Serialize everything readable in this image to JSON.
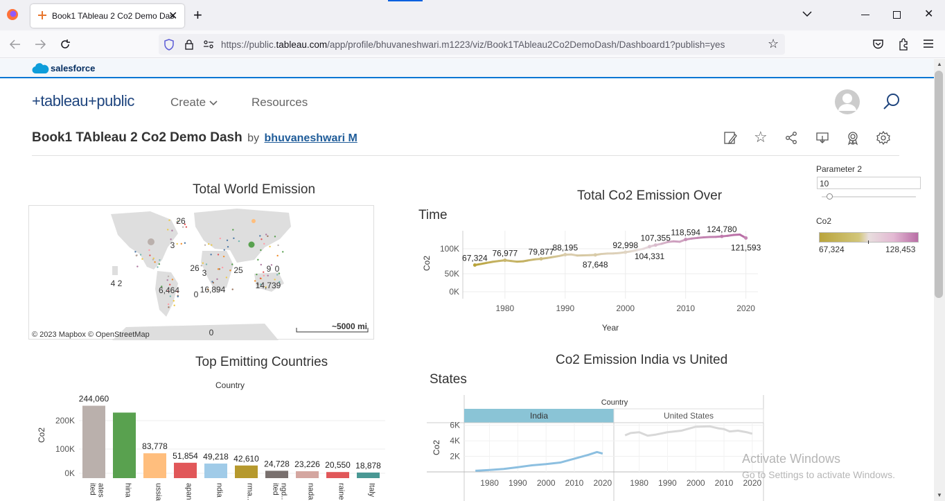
{
  "browser": {
    "tab_title": "Book1 TAbleau 2 Co2 Demo Das",
    "url_prefix": "https://public.",
    "url_domain": "tableau.com",
    "url_path": "/app/profile/bhuvaneshwari.m1223/viz/Book1TAbleau2Co2DemoDash/Dashboard1?publish=yes"
  },
  "salesforce": {
    "label": "salesforce"
  },
  "site": {
    "logo": "+tableau+public",
    "nav": [
      {
        "label": "Create"
      },
      {
        "label": "Resources"
      }
    ]
  },
  "viz": {
    "title": "Book1 TAbleau 2 Co2 Demo Dash",
    "by": "by",
    "author": "bhuvaneshwari M"
  },
  "controls": {
    "parameter_label": "Parameter 2",
    "parameter_value": "10",
    "legend_title": "Co2",
    "legend_min": "67,324",
    "legend_max": "128,453"
  },
  "map": {
    "title": "Total World Emission",
    "labels": [
      "26",
      "3",
      "26",
      "3",
      "25",
      "9",
      "0",
      "4",
      "2",
      "6,464",
      "0",
      "16,894",
      "14,739",
      "0"
    ],
    "attribution": "© 2023 Mapbox  © OpenStreetMap",
    "scale": "~5000 mi"
  },
  "chart_data": [
    {
      "type": "line",
      "title": "Total Co2 Emission Over Time",
      "xlabel": "Year",
      "ylabel": "Co2",
      "x_ticks": [
        "1980",
        "1990",
        "2000",
        "2010",
        "2020"
      ],
      "y_ticks": [
        "0K",
        "50K",
        "100K"
      ],
      "ylim": [
        0,
        135000
      ],
      "xlim": [
        1973,
        2022
      ],
      "series": [
        {
          "x": [
            1975,
            1976,
            1977,
            1978,
            1979,
            1980,
            1981,
            1982,
            1983,
            1984,
            1985,
            1986,
            1987,
            1988,
            1989,
            1990,
            1991,
            1992,
            1993,
            1994,
            1995,
            1996,
            1997,
            1998,
            1999,
            2000,
            2001,
            2002,
            2003,
            2004,
            2005,
            2006,
            2007,
            2008,
            2009,
            2010,
            2011,
            2012,
            2013,
            2014,
            2015,
            2016,
            2017,
            2018,
            2019,
            2020
          ],
          "values": [
            67324,
            69500,
            71800,
            74000,
            75500,
            76977,
            75500,
            74200,
            74800,
            77000,
            78800,
            79877,
            81500,
            83500,
            85500,
            88195,
            88600,
            86500,
            86800,
            87200,
            87648,
            89500,
            90500,
            90700,
            91500,
            92998,
            95000,
            97500,
            100000,
            104331,
            107355,
            110000,
            113500,
            115000,
            114000,
            118594,
            120500,
            121800,
            122900,
            123600,
            123800,
            124780,
            126000,
            127800,
            128453,
            121593
          ]
        }
      ],
      "data_labels": [
        {
          "x": 1975,
          "y": 67324,
          "label": "67,324"
        },
        {
          "x": 1980,
          "y": 76977,
          "label": "76,977"
        },
        {
          "x": 1986,
          "y": 79877,
          "label": "79,877"
        },
        {
          "x": 1990,
          "y": 88195,
          "label": "88,195"
        },
        {
          "x": 1995,
          "y": 87648,
          "label": "87,648"
        },
        {
          "x": 2000,
          "y": 92998,
          "label": "92,998"
        },
        {
          "x": 2004,
          "y": 104331,
          "label": "104,331"
        },
        {
          "x": 2005,
          "y": 107355,
          "label": "107,355"
        },
        {
          "x": 2010,
          "y": 118594,
          "label": "118,594"
        },
        {
          "x": 2016,
          "y": 124780,
          "label": "124,780"
        },
        {
          "x": 2020,
          "y": 121593,
          "label": "121,593"
        }
      ]
    },
    {
      "type": "bar",
      "title": "Top Emitting Countries",
      "header": "Country",
      "ylabel": "Co2",
      "y_ticks": [
        "0K",
        "100K",
        "200K"
      ],
      "ylim": [
        0,
        250000
      ],
      "categories": [
        "United States",
        "China",
        "Russia",
        "Japan",
        "India",
        "Germa..",
        "United Kingd..",
        "Canada",
        "Ukraine",
        "Italy"
      ],
      "category_labels": [
        "ited\nates",
        "hina",
        "ussia",
        "apan",
        "ndia",
        "rma..",
        "ited\nngd..",
        "nada",
        "raine",
        "Italy"
      ],
      "values": [
        244060,
        221000,
        83778,
        51854,
        49218,
        42610,
        24728,
        23226,
        20550,
        18878
      ],
      "value_labels": [
        "244,060",
        "",
        "83,778",
        "51,854",
        "49,218",
        "42,610",
        "24,728",
        "23,226",
        "20,550",
        "18,878"
      ],
      "colors": [
        "#bab0ac",
        "#59a14f",
        "#ffbe7d",
        "#e15759",
        "#a0cbe8",
        "#b6992d",
        "#79706e",
        "#d4a6a0",
        "#e15759",
        "#499894"
      ]
    },
    {
      "type": "line",
      "title": "Co2 Emission India vs United States",
      "header": "Country",
      "ylabel": "Co2",
      "y_ticks": [
        "2K",
        "4K",
        "6K"
      ],
      "ylim": [
        0,
        6500
      ],
      "x_ticks": [
        "1980",
        "1990",
        "2000",
        "2010",
        "2020"
      ],
      "xlim": [
        1973,
        2022
      ],
      "series": [
        {
          "name": "India",
          "x": [
            1975,
            1980,
            1985,
            1990,
            1995,
            2000,
            2005,
            2010,
            2015,
            2018,
            2020
          ],
          "values": [
            150,
            250,
            380,
            600,
            850,
            1000,
            1200,
            1700,
            2200,
            2550,
            2350
          ]
        },
        {
          "name": "United States",
          "x": [
            1975,
            1977,
            1980,
            1983,
            1986,
            1990,
            1995,
            2000,
            2005,
            2008,
            2010,
            2012,
            2015,
            2018,
            2020
          ],
          "values": [
            4700,
            5000,
            5100,
            4650,
            4800,
            5100,
            5300,
            5800,
            5850,
            5600,
            5500,
            5200,
            5300,
            5100,
            4900
          ]
        }
      ]
    }
  ],
  "colors": {
    "accent": "#1f457e",
    "salesforce": "#0176d3",
    "header_blue": "#8ac4d6"
  },
  "watermark": {
    "line1": "Activate Windows",
    "line2": "Go to Settings to activate Windows."
  }
}
